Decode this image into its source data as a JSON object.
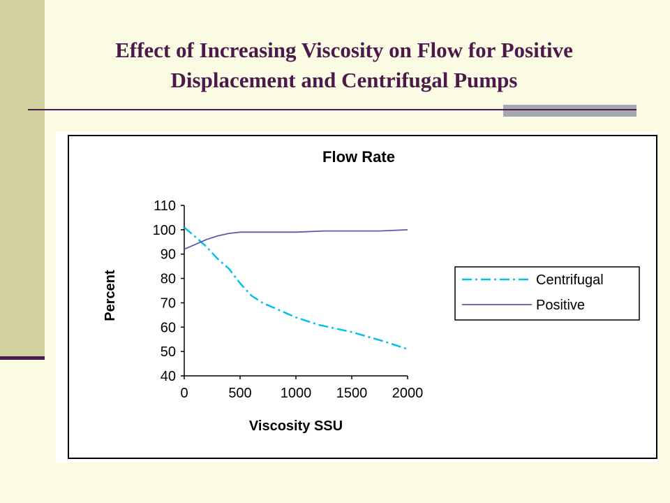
{
  "slide": {
    "title_line1": "Effect of Increasing Viscosity on Flow for Positive",
    "title_line2": "Displacement and Centrifugal Pumps"
  },
  "colors": {
    "background": "#fbfbe3",
    "band": "#d2d2a0",
    "title": "#4b1a4b",
    "centrifugal": "#00c0e8",
    "positive": "#5a5ab4"
  },
  "chart_data": {
    "type": "line",
    "title": "Flow Rate",
    "xlabel": "Viscosity SSU",
    "ylabel": "Percent",
    "xlim": [
      0,
      2000
    ],
    "ylim": [
      40,
      110
    ],
    "x_ticks": [
      "0",
      "500",
      "1000",
      "1500",
      "2000"
    ],
    "y_ticks": [
      "40",
      "50",
      "60",
      "70",
      "80",
      "90",
      "100",
      "110"
    ],
    "grid": false,
    "legend_position": "right",
    "series": [
      {
        "name": "Centrifugal",
        "style": "dash-dot",
        "color": "#00c0e8",
        "x": [
          0,
          100,
          200,
          300,
          400,
          500,
          600,
          700,
          800,
          1000,
          1200,
          1500,
          1800,
          2000
        ],
        "y": [
          101,
          97,
          93,
          88,
          84,
          78,
          73,
          70,
          68,
          64,
          61,
          58,
          54,
          51
        ]
      },
      {
        "name": "Positive",
        "style": "solid",
        "color": "#5a5ab4",
        "x": [
          0,
          100,
          200,
          300,
          400,
          500,
          750,
          1000,
          1250,
          1500,
          1750,
          2000
        ],
        "y": [
          92,
          94,
          96,
          97.5,
          98.5,
          99,
          99,
          99,
          99.5,
          99.5,
          99.5,
          100
        ]
      }
    ]
  }
}
